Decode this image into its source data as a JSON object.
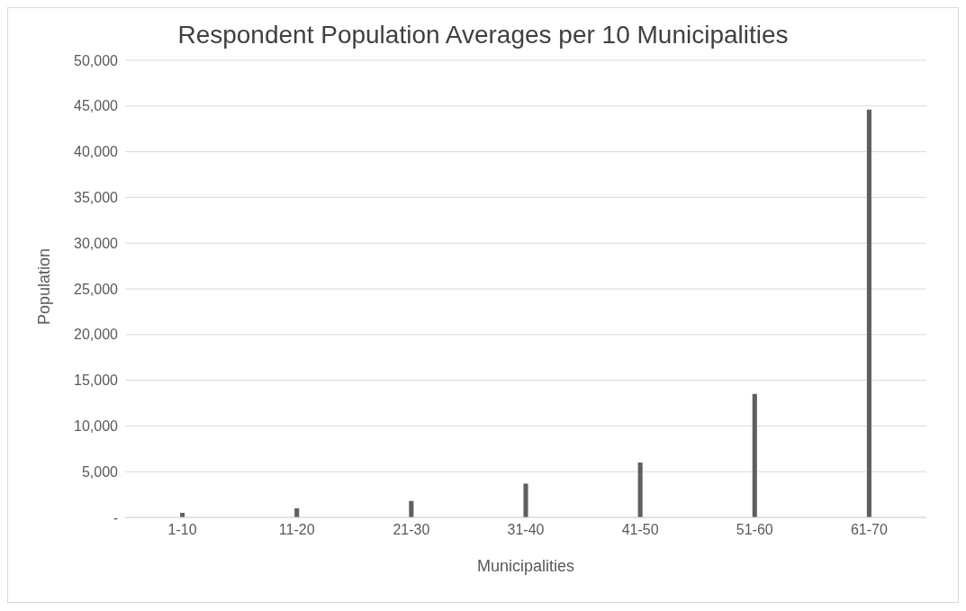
{
  "chart_data": {
    "type": "bar",
    "title": "Respondent Population Averages per 10 Municipalities",
    "xlabel": "Municipalities",
    "ylabel": "Population",
    "categories": [
      "1-10",
      "11-20",
      "21-30",
      "31-40",
      "41-50",
      "51-60",
      "61-70"
    ],
    "values": [
      500,
      1000,
      1800,
      3700,
      6000,
      13500,
      44600
    ],
    "color": "#5f5f5f",
    "ylim": [
      0,
      50000
    ],
    "yticks": [
      {
        "value": 0,
        "label": "-"
      },
      {
        "value": 5000,
        "label": "5,000"
      },
      {
        "value": 10000,
        "label": "10,000"
      },
      {
        "value": 15000,
        "label": "15,000"
      },
      {
        "value": 20000,
        "label": "20,000"
      },
      {
        "value": 25000,
        "label": "25,000"
      },
      {
        "value": 30000,
        "label": "30,000"
      },
      {
        "value": 35000,
        "label": "35,000"
      },
      {
        "value": 40000,
        "label": "40,000"
      },
      {
        "value": 45000,
        "label": "45,000"
      },
      {
        "value": 50000,
        "label": "50,000"
      }
    ],
    "grid": "y",
    "legend": false
  }
}
